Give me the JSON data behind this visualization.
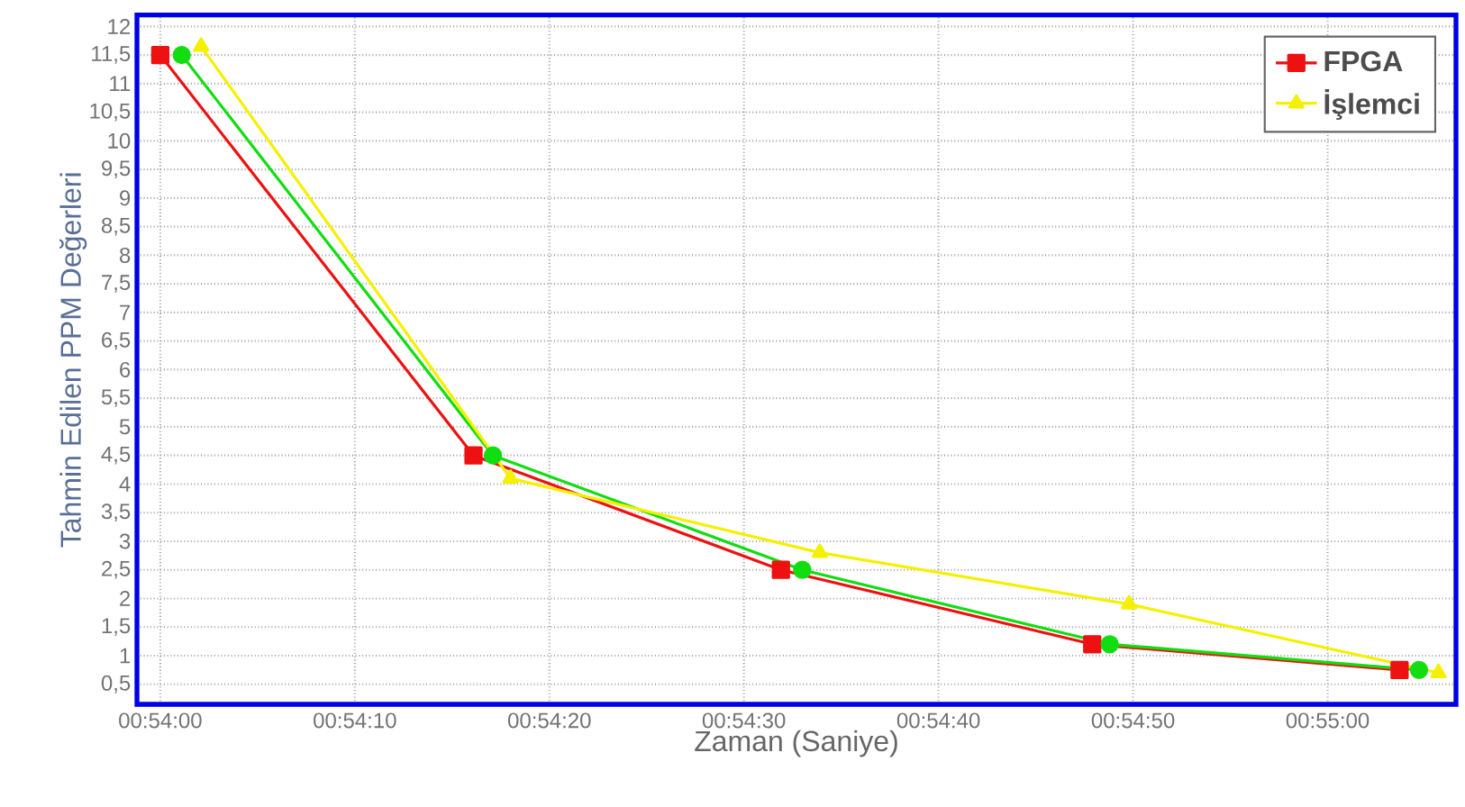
{
  "chart_data": {
    "type": "line",
    "xlabel": "Zaman (Saniye)",
    "ylabel": "Tahmin Edilen PPM Değerleri",
    "xlim": [
      0.899667,
      0.9185
    ],
    "ylim": [
      0.15,
      12.2
    ],
    "xticks": [
      {
        "value": 0.9,
        "label": "00:54:00"
      },
      {
        "value": 0.902778,
        "label": "00:54:10"
      },
      {
        "value": 0.905556,
        "label": "00:54:20"
      },
      {
        "value": 0.908333,
        "label": "00:54:30"
      },
      {
        "value": 0.911111,
        "label": "00:54:40"
      },
      {
        "value": 0.913889,
        "label": "00:54:50"
      },
      {
        "value": 0.916667,
        "label": "00:55:00"
      }
    ],
    "yticks": [
      {
        "value": 0.5,
        "label": "0,5"
      },
      1,
      {
        "value": 1.5,
        "label": "1,5"
      },
      2,
      {
        "value": 2.5,
        "label": "2,5"
      },
      3,
      {
        "value": 3.5,
        "label": "3,5"
      },
      4,
      {
        "value": 4.5,
        "label": "4,5"
      },
      5,
      {
        "value": 5.5,
        "label": "5,5"
      },
      6,
      {
        "value": 6.5,
        "label": "6,5"
      },
      7,
      {
        "value": 7.5,
        "label": "7,5"
      },
      8,
      {
        "value": 8.5,
        "label": "8,5"
      },
      9,
      {
        "value": 9.5,
        "label": "9,5"
      },
      10,
      {
        "value": 10.5,
        "label": "10,5"
      },
      11,
      {
        "value": 11.5,
        "label": "11,5"
      },
      12
    ],
    "grid": true,
    "legend": "top right",
    "line_style": "solid",
    "series": [
      {
        "name": "FPGA",
        "color": "#ee1111",
        "marker": "square",
        "x": [
          0.9,
          0.904472,
          0.908861,
          0.913306,
          0.917694
        ],
        "values": [
          11.5,
          4.5,
          2.5,
          1.2,
          0.75
        ]
      },
      {
        "color": "#11dd11",
        "marker": "circle",
        "x": [
          0.900306,
          0.90475,
          0.909167,
          0.913556,
          0.917972
        ],
        "values": [
          11.5,
          4.5,
          2.5,
          1.2,
          0.75
        ]
      },
      {
        "name": "İşlemci",
        "color": "#f5f000",
        "marker": "triangle",
        "x": [
          0.900583,
          0.905,
          0.909417,
          0.913833,
          0.91825
        ],
        "values": [
          11.65,
          4.1,
          2.8,
          1.9,
          0.7
        ]
      }
    ]
  }
}
